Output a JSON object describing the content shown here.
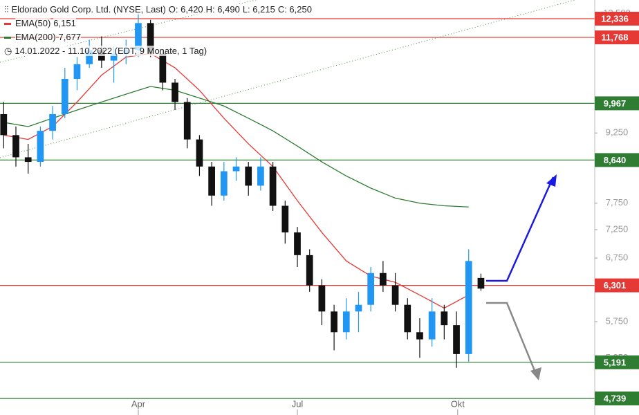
{
  "header": {
    "instrument": "Eldorado Gold Corp. Ltd. (NYSE, Last)",
    "open": "O: 6,420",
    "high": "H: 6,490",
    "low": "L: 6,215",
    "close": "C: 6,250",
    "period": "14.01.2022 - 11.10.2022 (EDT, 9 Monate, 1 Tag)"
  },
  "chart_data": {
    "type": "candlestick",
    "log_scale": true,
    "ylim": [
      4707,
      12930
    ],
    "xlim": [
      -0.3,
      48.3
    ],
    "yticks": [
      {
        "value": 12500,
        "label": "12,500"
      },
      {
        "value": 9250,
        "label": "9,250"
      },
      {
        "value": 7750,
        "label": "7,750"
      },
      {
        "value": 7250,
        "label": "7,250"
      },
      {
        "value": 6750,
        "label": "6,750"
      },
      {
        "value": 5750,
        "label": "5,750"
      },
      {
        "value": 5250,
        "label": "5,250"
      }
    ],
    "xticks": [
      {
        "value": 11,
        "label": "Apr"
      },
      {
        "value": 24,
        "label": "Jul"
      },
      {
        "value": 37.1,
        "label": "Okt"
      }
    ],
    "up_color": "#2196f3",
    "down_color": "#111111",
    "x": [
      0,
      1,
      2,
      3,
      4,
      5,
      6,
      7,
      8,
      9,
      10,
      11,
      12,
      13,
      14,
      15,
      16,
      17,
      18,
      19,
      20,
      21,
      22,
      23,
      24,
      25,
      26,
      27,
      28,
      29,
      30,
      31,
      32,
      33,
      34,
      35,
      36,
      37,
      38,
      39
    ],
    "open": [
      9700,
      9200,
      8700,
      8600,
      9300,
      9700,
      10600,
      11000,
      11400,
      11100,
      11300,
      11400,
      12200,
      11300,
      10500,
      10000,
      9100,
      8500,
      7900,
      8400,
      8500,
      8100,
      8500,
      7700,
      7200,
      6800,
      6300,
      5900,
      5600,
      5900,
      6000,
      6500,
      6300,
      6000,
      5600,
      5500,
      5900,
      5700,
      5300,
      6420
    ],
    "high": [
      10000,
      9400,
      9000,
      9400,
      9900,
      10900,
      11200,
      11700,
      11800,
      11500,
      11700,
      12500,
      12300,
      11400,
      10600,
      10100,
      9200,
      8600,
      8600,
      8700,
      8600,
      8700,
      8600,
      7800,
      7300,
      6900,
      6400,
      6000,
      6100,
      6200,
      6600,
      6700,
      6500,
      6100,
      5800,
      6100,
      6000,
      5900,
      6900,
      6490
    ],
    "low": [
      8900,
      8500,
      8350,
      8500,
      9100,
      9600,
      10300,
      10900,
      10900,
      10500,
      11000,
      11200,
      11200,
      10300,
      9800,
      8900,
      8300,
      7700,
      7800,
      8200,
      7900,
      8000,
      7600,
      7000,
      6600,
      6200,
      5700,
      5350,
      5500,
      5600,
      5900,
      6200,
      5900,
      5500,
      5250,
      5400,
      5500,
      5120,
      5200,
      6215
    ],
    "close": [
      9200,
      8700,
      8600,
      9300,
      9700,
      10600,
      11000,
      11400,
      11100,
      11300,
      11400,
      12200,
      11300,
      10500,
      10000,
      9100,
      8500,
      7900,
      8400,
      8500,
      8100,
      8500,
      7700,
      7200,
      6800,
      6300,
      5900,
      5600,
      5900,
      6000,
      6500,
      6300,
      6000,
      5600,
      5500,
      5900,
      5700,
      5300,
      6700,
      6250
    ],
    "series": [
      {
        "name": "EMA(50)",
        "last_label": "6,151",
        "color": "#e53935",
        "x": [
          0,
          2,
          4,
          6,
          8,
          10,
          12,
          14,
          16,
          18,
          20,
          22,
          24,
          26,
          28,
          30,
          32,
          34,
          36,
          38
        ],
        "values": [
          9200,
          9100,
          9400,
          10000,
          10700,
          11200,
          11300,
          10900,
          10300,
          9600,
          9000,
          8500,
          7800,
          7200,
          6700,
          6450,
          6350,
          6150,
          5950,
          6151
        ]
      },
      {
        "name": "EMA(200)",
        "last_label": "7,677",
        "color": "#2e7d32",
        "x": [
          0,
          2,
          4,
          6,
          8,
          10,
          12,
          14,
          16,
          18,
          20,
          22,
          24,
          26,
          28,
          30,
          32,
          34,
          36,
          38
        ],
        "values": [
          9500,
          9400,
          9600,
          9800,
          10000,
          10200,
          10400,
          10300,
          10100,
          9900,
          9600,
          9300,
          8950,
          8600,
          8300,
          8050,
          7850,
          7750,
          7700,
          7677
        ]
      }
    ],
    "levels": [
      {
        "value": 12336,
        "label": "12,336",
        "color": "#e53935"
      },
      {
        "value": 11768,
        "label": "11,768",
        "color": "#e53935"
      },
      {
        "value": 9967,
        "label": "9,967",
        "color": "#2e7d32"
      },
      {
        "value": 8640,
        "label": "8,640",
        "color": "#2e7d32"
      },
      {
        "value": 6301,
        "label": "6,301",
        "color": "#e53935"
      },
      {
        "value": 5191,
        "label": "5,191",
        "color": "#2e7d32"
      },
      {
        "value": 4739,
        "label": "4,739",
        "color": "#2e7d32"
      }
    ]
  }
}
